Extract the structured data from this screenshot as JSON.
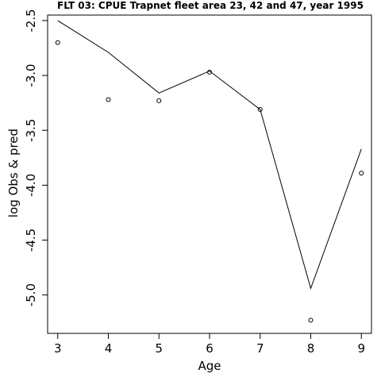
{
  "chart_data": {
    "type": "line",
    "title": "FLT 03: CPUE Trapnet fleet area 23, 42 and 47, year 1995",
    "xlabel": "Age",
    "ylabel": "log Obs & pred",
    "xlim": [
      2.8,
      9.2
    ],
    "ylim": [
      -5.35,
      -2.45
    ],
    "x_ticks": [
      3,
      4,
      5,
      6,
      7,
      8,
      9
    ],
    "x_tick_labels": [
      "3",
      "4",
      "5",
      "6",
      "7",
      "8",
      "9"
    ],
    "y_ticks": [
      -2.5,
      -3.0,
      -3.5,
      -4.0,
      -4.5,
      -5.0
    ],
    "y_tick_labels": [
      "-2.5",
      "-3.0",
      "-3.5",
      "-4.0",
      "-4.5",
      "-5.0"
    ],
    "grid": false,
    "legend": "none",
    "series": [
      {
        "type": "line",
        "x": [
          3,
          4,
          5,
          6,
          7,
          8,
          9
        ],
        "values": [
          -2.5,
          -2.79,
          -3.16,
          -2.96,
          -3.31,
          -4.94,
          -3.67
        ]
      },
      {
        "type": "scatter",
        "x": [
          3,
          4,
          5,
          6,
          7,
          8,
          9
        ],
        "values": [
          -2.7,
          -3.22,
          -3.23,
          -2.97,
          -3.31,
          -5.23,
          -3.89
        ]
      }
    ]
  }
}
